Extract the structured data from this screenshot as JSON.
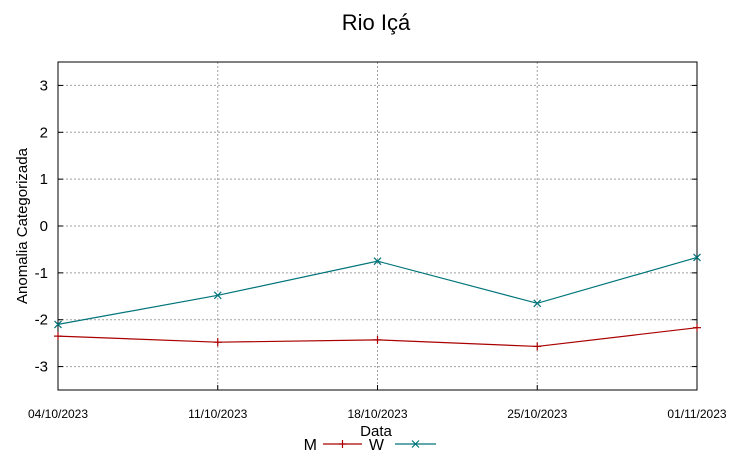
{
  "chart_data": {
    "type": "line",
    "title": "Rio Içá",
    "xlabel": "Data",
    "ylabel": "Anomalia Categorizada",
    "categories": [
      "04/10/2023",
      "11/10/2023",
      "18/10/2023",
      "25/10/2023",
      "01/11/2023"
    ],
    "ylim": [
      -3.5,
      3.5
    ],
    "yticks": [
      3,
      2,
      1,
      0,
      -1,
      -2,
      -3
    ],
    "grid": true,
    "legend_position": "bottom",
    "series": [
      {
        "name": "M",
        "color": "#aa0000",
        "marker": "plus",
        "values": [
          -2.35,
          -2.48,
          -2.43,
          -2.57,
          -2.17
        ]
      },
      {
        "name": "W",
        "color": "#00757a",
        "marker": "cross",
        "values": [
          -2.1,
          -1.48,
          -0.75,
          -1.65,
          -0.67
        ]
      }
    ]
  }
}
